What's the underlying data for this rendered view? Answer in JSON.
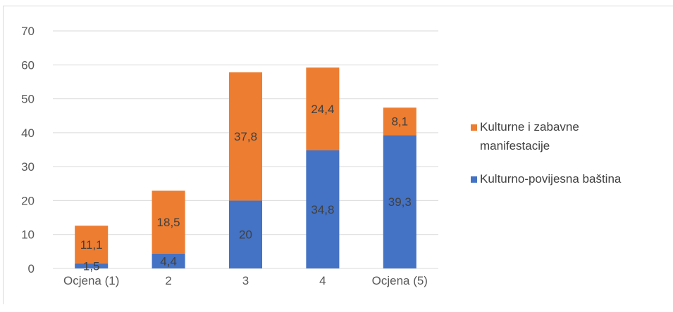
{
  "chart_data": {
    "type": "bar",
    "stacked": true,
    "categories": [
      "Ocjena (1)",
      "2",
      "3",
      "4",
      "Ocjena (5)"
    ],
    "series": [
      {
        "name": "Kulturno-povijesna baština",
        "values": [
          1.5,
          4.4,
          20,
          34.8,
          39.3
        ],
        "color": "#4472c4"
      },
      {
        "name": "Kulturne i zabavne manifestacije",
        "values": [
          11.1,
          18.5,
          37.8,
          24.4,
          8.1
        ],
        "color": "#ed7d31"
      }
    ],
    "ylim": [
      0,
      70
    ],
    "yticks": [
      0,
      10,
      20,
      30,
      40,
      50,
      60,
      70
    ],
    "grid": true,
    "legend_position": "right",
    "data_labels": true
  },
  "legend": {
    "item1_line1": "Kulturne i zabavne",
    "item1_line2": "manifestacije",
    "item2": "Kulturno-povijesna baština"
  }
}
